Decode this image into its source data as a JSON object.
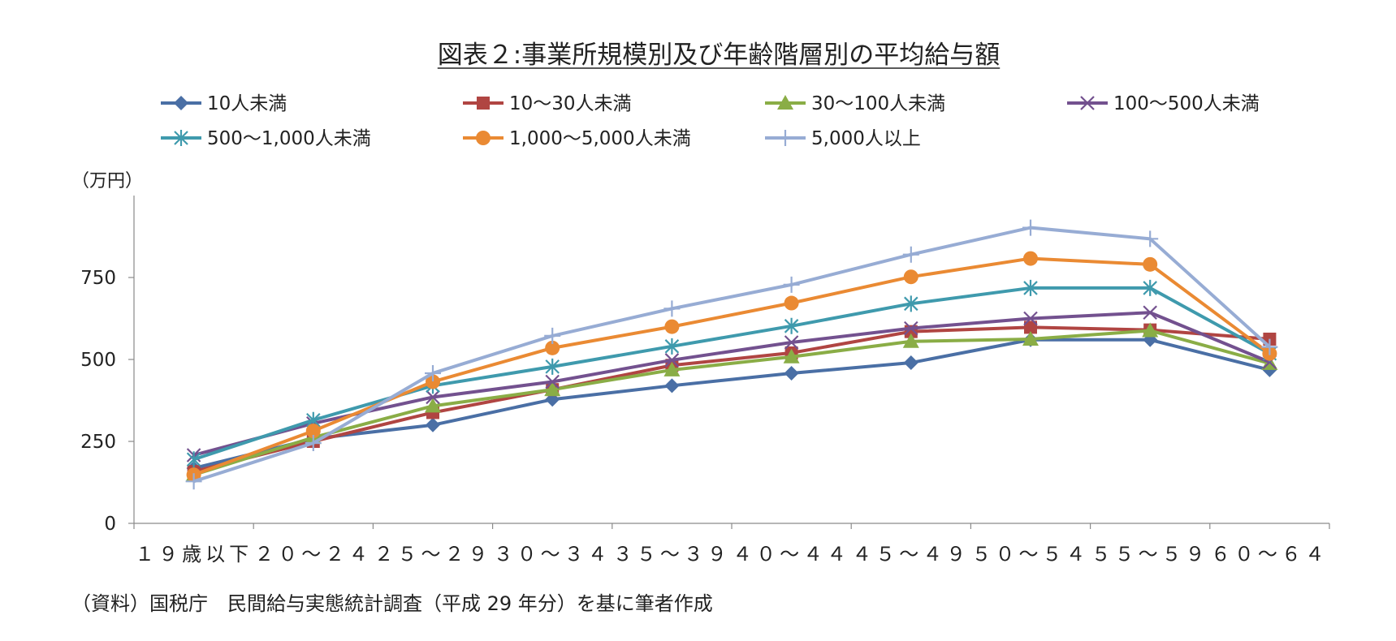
{
  "chart_data": {
    "type": "line",
    "title": "図表２:事業所規模別及び年齢階層別の平均給与額",
    "ylabel": "（万円）",
    "xlabel": "",
    "ylim": [
      0,
      1000
    ],
    "yticks": [
      0,
      250,
      500,
      750
    ],
    "grid": false,
    "legend_position": "top",
    "categories": [
      "１９歳以下",
      "２０～２４",
      "２５～２９",
      "３０～３４",
      "３５～３９",
      "４０～４４",
      "４５～４９",
      "５０～５４",
      "５５～５９",
      "６０～６４"
    ],
    "series": [
      {
        "name": "10人未満",
        "color": "#4a6fa5",
        "marker": "diamond",
        "values": [
          168,
          258,
          300,
          378,
          420,
          458,
          490,
          560,
          560,
          468
        ]
      },
      {
        "name": "10～30人未満",
        "color": "#b04542",
        "marker": "square",
        "values": [
          158,
          250,
          338,
          408,
          482,
          520,
          585,
          598,
          590,
          562
        ]
      },
      {
        "name": "30～100人未満",
        "color": "#8aad46",
        "marker": "triangle",
        "values": [
          148,
          262,
          358,
          408,
          468,
          508,
          555,
          562,
          588,
          488
        ]
      },
      {
        "name": "100～500人未満",
        "color": "#73518f",
        "marker": "x",
        "values": [
          208,
          305,
          385,
          432,
          498,
          552,
          595,
          625,
          643,
          492
        ]
      },
      {
        "name": "500～1,000人未満",
        "color": "#3f9aad",
        "marker": "asterisk",
        "values": [
          195,
          315,
          420,
          478,
          540,
          602,
          670,
          718,
          718,
          518
        ]
      },
      {
        "name": "1,000～5,000人未満",
        "color": "#ea8a33",
        "marker": "circle",
        "values": [
          148,
          282,
          432,
          535,
          600,
          672,
          752,
          808,
          790,
          518
        ]
      },
      {
        "name": "5,000人以上",
        "color": "#97acd4",
        "marker": "plus",
        "values": [
          128,
          245,
          458,
          572,
          655,
          728,
          820,
          902,
          868,
          538
        ]
      }
    ]
  },
  "source_note": "（資料）国税庁　民間給与実態統計調査（平成 29 年分）を基に筆者作成"
}
